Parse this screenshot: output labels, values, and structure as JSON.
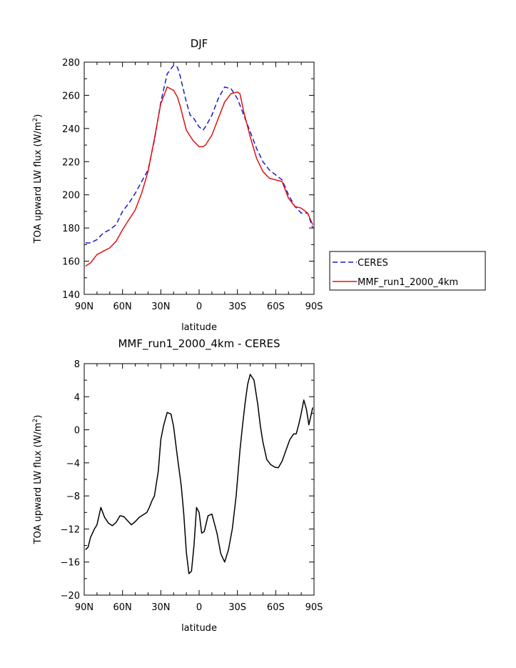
{
  "chart_data": [
    {
      "type": "line",
      "title": "DJF",
      "xlabel": "latitude",
      "ylabel": "TOA upward LW flux (W/m²)",
      "ylabel_main": "TOA upward LW flux (W/m",
      "ylabel_sup": "2",
      "ylabel_end": ")",
      "xlim": [
        -90,
        90
      ],
      "ylim": [
        140,
        280
      ],
      "xticks": [
        -90,
        -60,
        -30,
        0,
        30,
        60,
        90
      ],
      "xtick_labels": [
        "90N",
        "60N",
        "30N",
        "0",
        "30S",
        "60S",
        "90S"
      ],
      "yticks": [
        140,
        160,
        180,
        200,
        220,
        240,
        260,
        280
      ],
      "ytick_labels": [
        "140",
        "160",
        "180",
        "200",
        "220",
        "240",
        "260",
        "280"
      ],
      "legend": {
        "placement": "right",
        "entries": [
          {
            "name": "CERES",
            "color": "#1a1acc",
            "style": "dashed"
          },
          {
            "name": "MMF_run1_2000_4km",
            "color": "#e01010",
            "style": "solid"
          }
        ]
      },
      "series": [
        {
          "name": "CERES",
          "color": "#1a1acc",
          "style": "dashed",
          "x": [
            -89,
            -85,
            -80,
            -75,
            -70,
            -65,
            -60,
            -55,
            -50,
            -45,
            -40,
            -35,
            -30,
            -25,
            -20,
            -17,
            -15,
            -10,
            -7,
            -5,
            0,
            3,
            5,
            10,
            15,
            20,
            25,
            30,
            35,
            40,
            45,
            50,
            55,
            60,
            65,
            70,
            75,
            80,
            85,
            89
          ],
          "y": [
            171,
            171,
            173,
            177,
            179,
            182,
            190,
            195,
            201,
            208,
            215,
            233,
            256,
            273,
            278,
            277,
            272,
            256,
            248,
            247,
            241,
            239,
            241,
            248,
            258,
            265,
            264,
            258,
            248,
            238,
            228,
            220,
            215,
            212,
            209,
            200,
            193,
            189,
            189,
            180
          ]
        },
        {
          "name": "MMF_run1_2000_4km",
          "color": "#e01010",
          "style": "solid",
          "x": [
            -89,
            -85,
            -80,
            -75,
            -70,
            -65,
            -60,
            -55,
            -50,
            -45,
            -40,
            -35,
            -30,
            -25,
            -20,
            -17,
            -15,
            -10,
            -5,
            0,
            3,
            5,
            10,
            15,
            20,
            25,
            30,
            32,
            35,
            40,
            45,
            50,
            55,
            60,
            65,
            70,
            75,
            80,
            85,
            89
          ],
          "y": [
            157,
            159,
            164,
            166,
            168,
            172,
            179,
            185,
            191,
            201,
            214,
            234,
            255,
            265,
            263,
            259,
            254,
            239,
            233,
            229,
            229,
            230,
            236,
            246,
            256,
            261,
            262,
            261,
            250,
            235,
            222,
            214,
            210,
            209,
            208,
            198,
            193,
            192,
            189,
            182
          ]
        }
      ]
    },
    {
      "type": "line",
      "title": "MMF_run1_2000_4km - CERES",
      "xlabel": "latitude",
      "ylabel": "TOA upward LW flux (W/m²)",
      "ylabel_main": "TOA upward LW flux (W/m",
      "ylabel_sup": "2",
      "ylabel_end": ")",
      "xlim": [
        -90,
        90
      ],
      "ylim": [
        -20,
        8
      ],
      "xticks": [
        -90,
        -60,
        -30,
        0,
        30,
        60,
        90
      ],
      "xtick_labels": [
        "90N",
        "60N",
        "30N",
        "0",
        "30S",
        "60S",
        "90S"
      ],
      "yticks": [
        -20,
        -16,
        -12,
        -8,
        -4,
        0,
        4,
        8
      ],
      "ytick_labels": [
        "−20",
        "−16",
        "−12",
        "−8",
        "−4",
        "0",
        "4",
        "8"
      ],
      "series": [
        {
          "name": "",
          "color": "#000000",
          "style": "solid",
          "x": [
            -89,
            -87,
            -85,
            -82,
            -80,
            -77,
            -74,
            -71,
            -68,
            -65,
            -62,
            -59,
            -56,
            -53,
            -50,
            -47,
            -45,
            -43,
            -41,
            -39,
            -37,
            -35,
            -32,
            -30,
            -28,
            -25,
            -22,
            -20,
            -17,
            -14,
            -12,
            -10,
            -8,
            -6,
            -4,
            -2,
            0,
            2,
            4,
            7,
            10,
            14,
            17,
            20,
            23,
            26,
            29,
            32,
            34,
            36,
            38,
            40,
            43,
            46,
            48,
            50,
            53,
            56,
            59,
            62,
            65,
            68,
            71,
            74,
            76,
            78,
            80,
            82,
            84,
            86,
            89
          ],
          "y": [
            -14.5,
            -14.2,
            -13,
            -12,
            -11.5,
            -9.4,
            -10.6,
            -11.3,
            -11.6,
            -11.2,
            -10.4,
            -10.5,
            -11,
            -11.5,
            -11.1,
            -10.6,
            -10.4,
            -10.2,
            -10,
            -9.4,
            -8.6,
            -8,
            -5,
            -1.2,
            0.4,
            2.1,
            1.9,
            0.4,
            -3.3,
            -6.8,
            -10.2,
            -14.8,
            -17.4,
            -17.1,
            -14,
            -9.4,
            -10,
            -12.5,
            -12.3,
            -10.4,
            -10.2,
            -12.5,
            -15,
            -16,
            -14.5,
            -12,
            -8,
            -2.5,
            0.5,
            3.2,
            5.5,
            6.7,
            6,
            3,
            0.4,
            -1.5,
            -3.6,
            -4.2,
            -4.5,
            -4.6,
            -3.8,
            -2.5,
            -1.2,
            -0.5,
            -0.5,
            0.6,
            2,
            3.6,
            2.5,
            0.6,
            2.7
          ]
        }
      ]
    }
  ]
}
